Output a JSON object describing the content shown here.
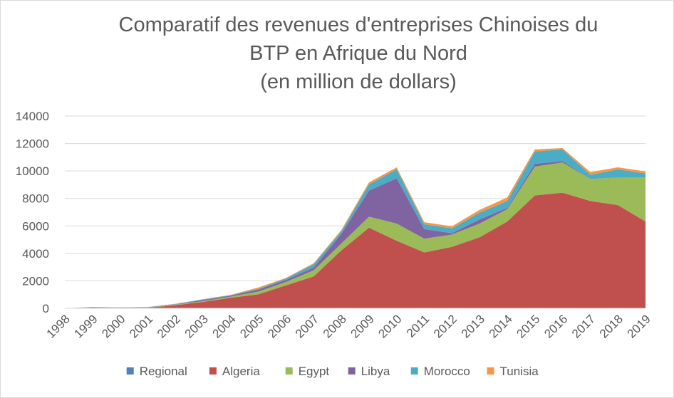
{
  "chart_data": {
    "type": "area",
    "stacked": true,
    "title_lines": [
      "Comparatif des revenues d'entreprises Chinoises du",
      "BTP en Afrique du Nord",
      "(en million de dollars)"
    ],
    "xlabel": "",
    "ylabel": "",
    "x": [
      "1998",
      "1999",
      "2000",
      "2001",
      "2002",
      "2003",
      "2004",
      "2005",
      "2006",
      "2007",
      "2008",
      "2009",
      "2010",
      "2011",
      "2012",
      "2013",
      "2014",
      "2015",
      "2016",
      "2017",
      "2018",
      "2019"
    ],
    "ylim": [
      0,
      14000
    ],
    "yticks": [
      0,
      2000,
      4000,
      6000,
      8000,
      10000,
      12000,
      14000
    ],
    "grid": true,
    "legend_position": "bottom",
    "series": [
      {
        "name": "Regional",
        "color": "#4f81bd",
        "values": [
          0,
          50,
          20,
          10,
          20,
          20,
          20,
          20,
          20,
          20,
          20,
          20,
          20,
          20,
          20,
          20,
          20,
          20,
          20,
          20,
          20,
          20
        ]
      },
      {
        "name": "Algeria",
        "color": "#c0504d",
        "values": [
          0,
          0,
          0,
          30,
          200,
          450,
          750,
          1000,
          1650,
          2300,
          4200,
          5850,
          4900,
          4050,
          4450,
          5150,
          6300,
          8200,
          8400,
          7800,
          7500,
          6300
        ]
      },
      {
        "name": "Egypt",
        "color": "#9bbb59",
        "values": [
          0,
          20,
          10,
          20,
          40,
          50,
          80,
          200,
          250,
          450,
          500,
          800,
          1250,
          1000,
          900,
          1000,
          900,
          2100,
          2200,
          1600,
          2000,
          3200
        ]
      },
      {
        "name": "Libya",
        "color": "#8064a2",
        "values": [
          0,
          20,
          20,
          20,
          20,
          80,
          70,
          150,
          150,
          200,
          700,
          1900,
          3300,
          700,
          100,
          300,
          100,
          200,
          100,
          0,
          0,
          0
        ]
      },
      {
        "name": "Morocco",
        "color": "#4bacc6",
        "values": [
          0,
          0,
          10,
          10,
          30,
          50,
          40,
          50,
          100,
          250,
          180,
          450,
          650,
          350,
          350,
          500,
          500,
          900,
          850,
          300,
          600,
          300
        ]
      },
      {
        "name": "Tunisia",
        "color": "#f79646",
        "values": [
          0,
          10,
          10,
          10,
          20,
          20,
          20,
          100,
          50,
          60,
          100,
          150,
          150,
          150,
          150,
          200,
          250,
          150,
          100,
          200,
          150,
          150
        ]
      }
    ]
  }
}
